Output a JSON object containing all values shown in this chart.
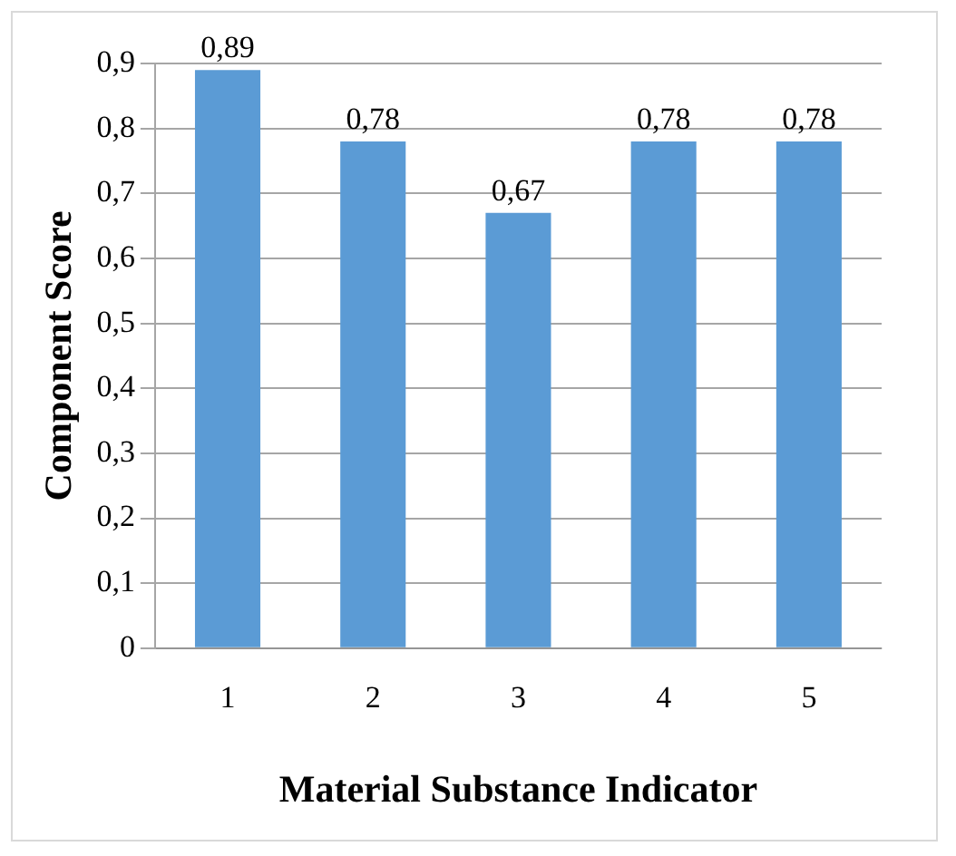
{
  "chart_data": {
    "type": "bar",
    "xlabel": "Material Substance Indicator",
    "ylabel": "Component Score",
    "categories": [
      "1",
      "2",
      "3",
      "4",
      "5"
    ],
    "values": [
      0.89,
      0.78,
      0.67,
      0.78,
      0.78
    ],
    "value_labels": [
      "0,89",
      "0,78",
      "0,67",
      "0,78",
      "0,78"
    ],
    "color": "#5b9bd5",
    "ylim": [
      0,
      0.9
    ],
    "yticks": [
      {
        "value": 0,
        "label": "0"
      },
      {
        "value": 0.1,
        "label": "0,1"
      },
      {
        "value": 0.2,
        "label": "0,2"
      },
      {
        "value": 0.3,
        "label": "0,3"
      },
      {
        "value": 0.4,
        "label": "0,4"
      },
      {
        "value": 0.5,
        "label": "0,5"
      },
      {
        "value": 0.6,
        "label": "0,6"
      },
      {
        "value": 0.7,
        "label": "0,7"
      },
      {
        "value": 0.8,
        "label": "0,8"
      },
      {
        "value": 0.9,
        "label": "0,9"
      }
    ],
    "grid": "y"
  }
}
